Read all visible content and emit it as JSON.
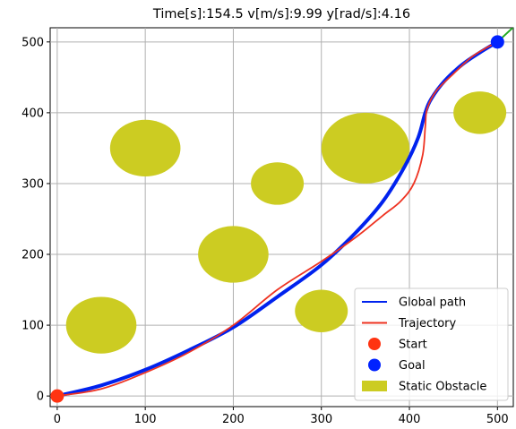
{
  "chart_data": {
    "type": "line",
    "title": "Time[s]:154.5 v[m/s]:9.99 y[rad/s]:4.16",
    "xlim": [
      -8,
      518
    ],
    "ylim": [
      -15,
      520
    ],
    "xticks": [
      0,
      100,
      200,
      300,
      400,
      500
    ],
    "yticks": [
      0,
      100,
      200,
      300,
      400,
      500
    ],
    "grid": true,
    "legend_position": "lower-right",
    "colors": {
      "global_path": "#0022ee",
      "trajectory": "#ee3322",
      "start": "#ff3311",
      "goal": "#0022ff",
      "obstacle": "#cccc22",
      "heading": "#22aa22",
      "grid": "#b0b0b0"
    },
    "series": [
      {
        "name": "Global path",
        "x": [
          0,
          50,
          100,
          150,
          200,
          250,
          300,
          340,
          370,
          395,
          410,
          418,
          425,
          440,
          460,
          480,
          500
        ],
        "y": [
          0,
          15,
          37,
          65,
          97,
          140,
          185,
          232,
          275,
          325,
          365,
          400,
          420,
          445,
          468,
          485,
          500
        ]
      },
      {
        "name": "Trajectory",
        "x": [
          0,
          50,
          100,
          150,
          200,
          250,
          300,
          340,
          370,
          390,
          405,
          415,
          418,
          420,
          430,
          450,
          470,
          485,
          500
        ],
        "y": [
          0,
          10,
          33,
          62,
          100,
          150,
          190,
          225,
          255,
          275,
          300,
          340,
          380,
          405,
          430,
          455,
          478,
          490,
          500
        ]
      }
    ],
    "start": {
      "name": "Start",
      "x": 0,
      "y": 0
    },
    "goal": {
      "name": "Goal",
      "x": 500,
      "y": 500
    },
    "obstacles": {
      "name": "Static Obstacle",
      "items": [
        {
          "x": 50,
          "y": 100,
          "rx": 40,
          "ry": 40
        },
        {
          "x": 100,
          "y": 350,
          "rx": 40,
          "ry": 40
        },
        {
          "x": 200,
          "y": 200,
          "rx": 40,
          "ry": 40
        },
        {
          "x": 250,
          "y": 300,
          "rx": 30,
          "ry": 30
        },
        {
          "x": 300,
          "y": 120,
          "rx": 30,
          "ry": 30
        },
        {
          "x": 350,
          "y": 350,
          "rx": 50,
          "ry": 50
        },
        {
          "x": 480,
          "y": 400,
          "rx": 30,
          "ry": 30
        }
      ]
    },
    "heading": {
      "x": [
        500,
        520
      ],
      "y": [
        500,
        523
      ]
    }
  }
}
